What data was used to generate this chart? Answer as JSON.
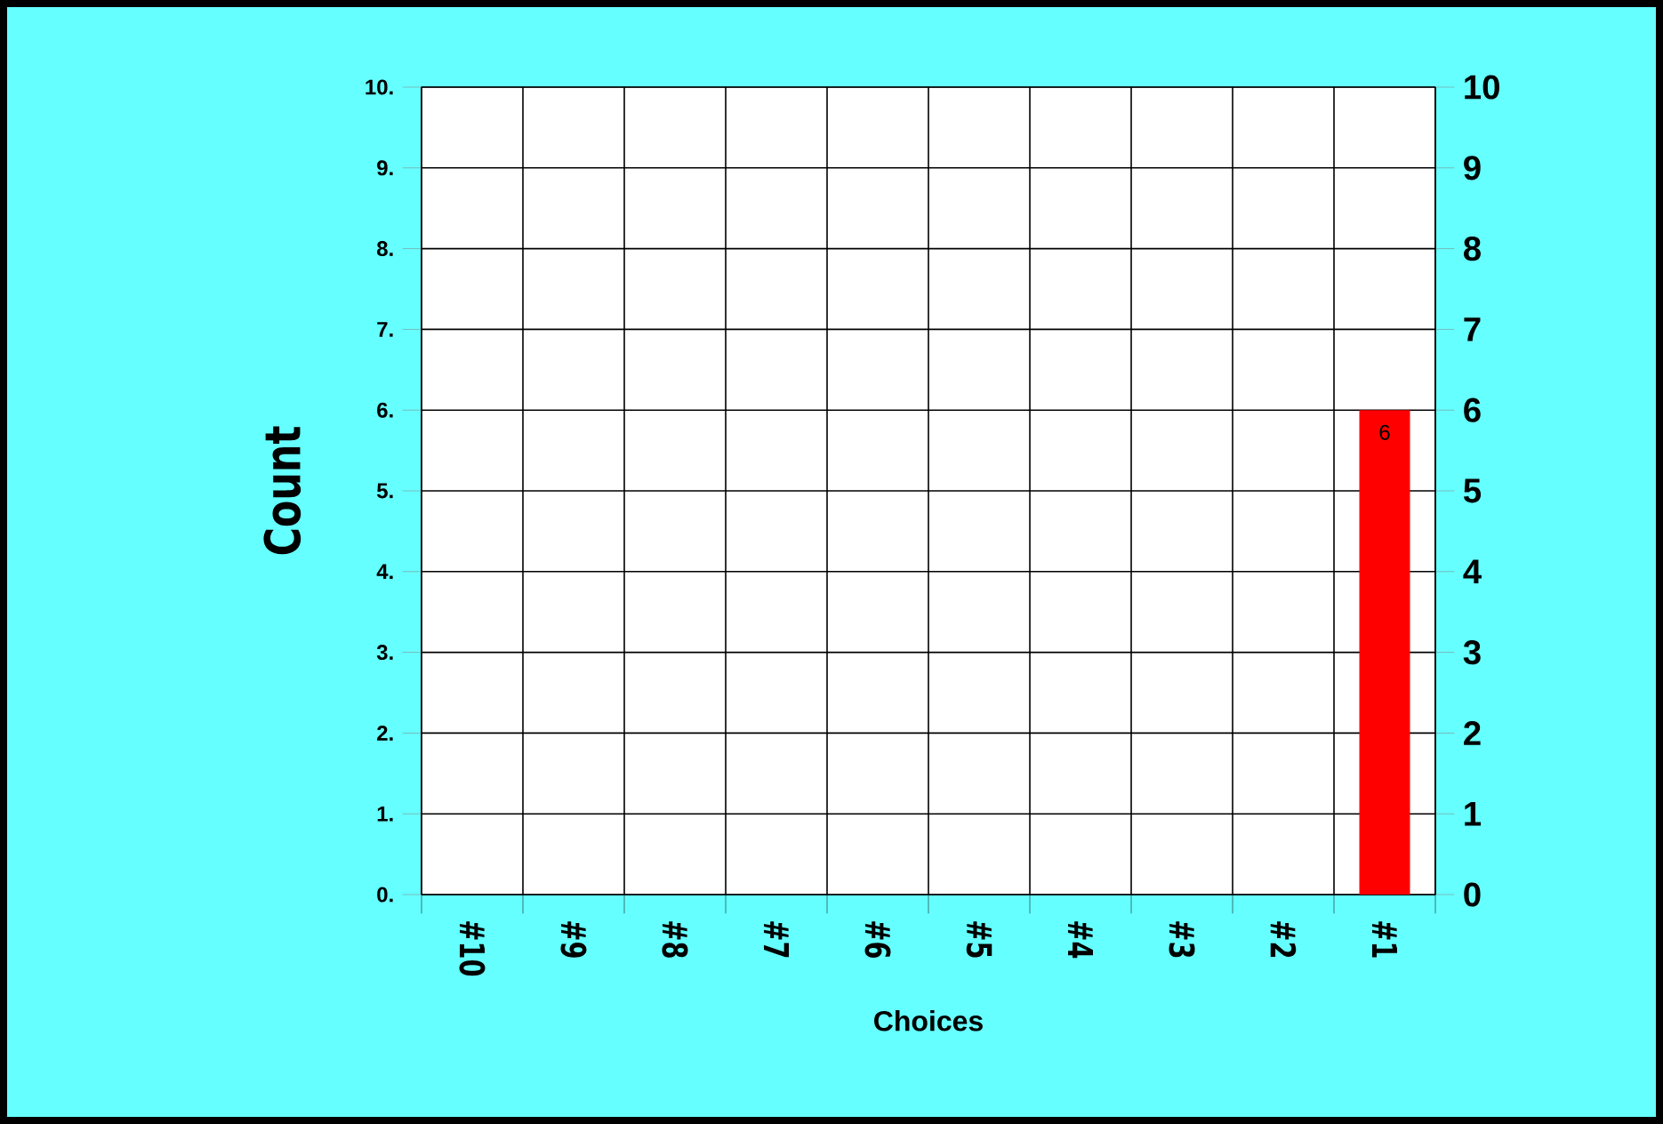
{
  "chart_data": {
    "type": "bar",
    "xlabel": "Choices",
    "ylabel": "Count",
    "categories": [
      "#10",
      "#9",
      "#8",
      "#7",
      "#6",
      "#5",
      "#4",
      "#3",
      "#2",
      "#1"
    ],
    "values": [
      0,
      0,
      0,
      0,
      0,
      0,
      0,
      0,
      0,
      6
    ],
    "value_labels": [
      null,
      null,
      null,
      null,
      null,
      null,
      null,
      null,
      null,
      "6"
    ],
    "color": "#ff0000",
    "ylim": [
      0,
      10
    ],
    "yticks": [
      {
        "value": 0,
        "label": "0."
      },
      {
        "value": 1,
        "label": "1."
      },
      {
        "value": 2,
        "label": "2."
      },
      {
        "value": 3,
        "label": "3."
      },
      {
        "value": 4,
        "label": "4."
      },
      {
        "value": 5,
        "label": "5."
      },
      {
        "value": 6,
        "label": "6."
      },
      {
        "value": 7,
        "label": "7."
      },
      {
        "value": 8,
        "label": "8."
      },
      {
        "value": 9,
        "label": "9."
      },
      {
        "value": 10,
        "label": "10."
      }
    ],
    "y2lim": [
      0,
      10
    ],
    "y2ticks": [
      0,
      1,
      2,
      3,
      4,
      5,
      6,
      7,
      8,
      9,
      10
    ],
    "grid": true
  }
}
